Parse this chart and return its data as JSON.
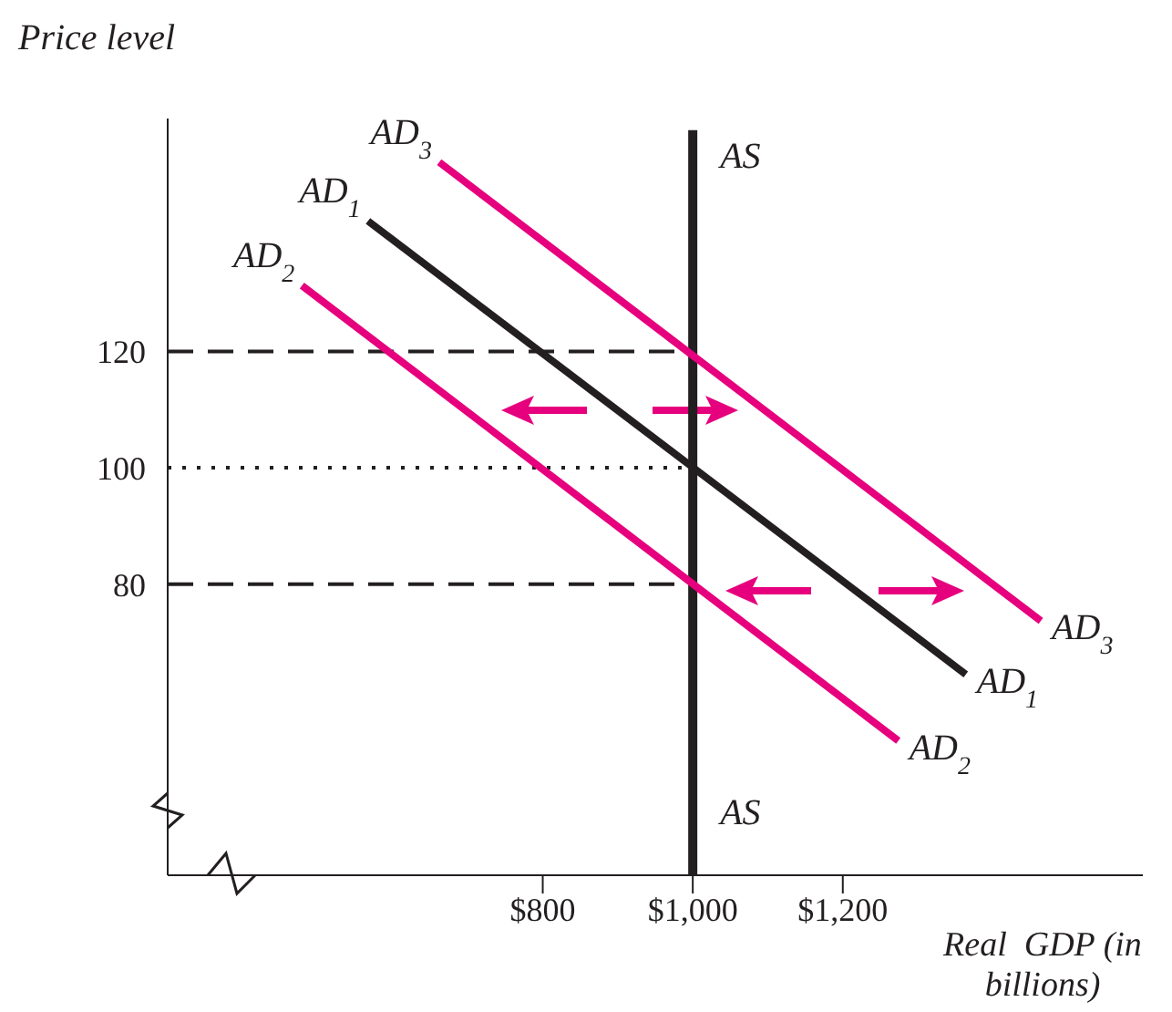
{
  "chart_data": {
    "type": "line",
    "xlabel": "Real  GDP (in billions)",
    "ylabel": "Price level",
    "xlim": [
      300,
      1600
    ],
    "ylim": [
      30,
      160
    ],
    "xticks": [
      {
        "value": 800,
        "label": "$800"
      },
      {
        "value": 1000,
        "label": "$1,000"
      },
      {
        "value": 1200,
        "label": "$1,200"
      }
    ],
    "yticks": [
      80,
      100,
      120
    ],
    "marker": "none",
    "line_style": "solid",
    "series": [
      {
        "name": "AD$_{3}$",
        "color": "#e6007e",
        "x": [
          662,
          1464
        ],
        "values": [
          152.5,
          73.7
        ]
      },
      {
        "name": "AD$_{1}$",
        "color": "#231f20",
        "x": [
          567,
          1364
        ],
        "values": [
          142.4,
          64.5
        ]
      },
      {
        "name": "AD$_{2}$",
        "color": "#e6007e",
        "x": [
          479,
          1274
        ],
        "values": [
          131.3,
          53.1
        ]
      }
    ],
    "ref_lines": [
      {
        "axis": "x",
        "value": 1000,
        "label": "AS",
        "color": "#231f20",
        "line_style": "solid"
      },
      {
        "axis": "y",
        "value": 120,
        "color": "#231f20",
        "line_style": "dashed"
      },
      {
        "axis": "y",
        "value": 100,
        "color": "#231f20",
        "line_style": "dotted"
      },
      {
        "axis": "y",
        "value": 80,
        "color": "#231f20",
        "line_style": "dashed"
      }
    ]
  }
}
